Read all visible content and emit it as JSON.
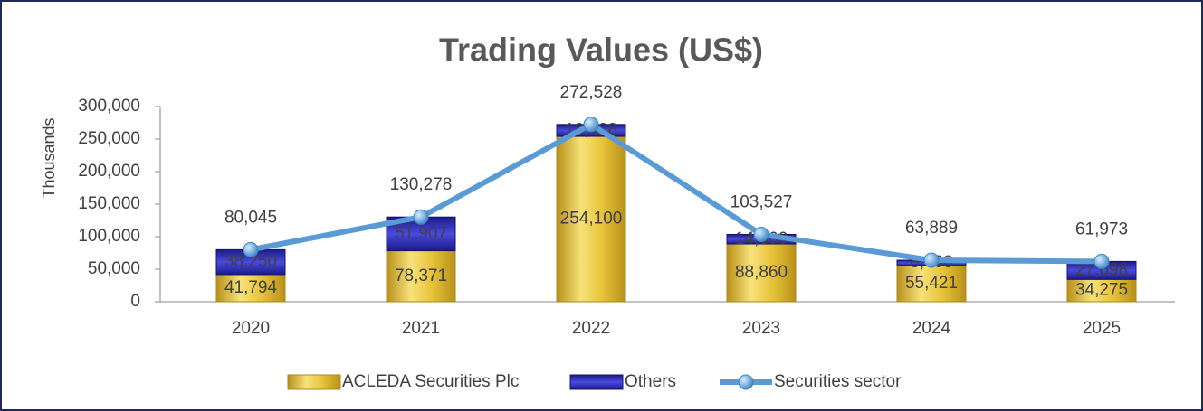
{
  "chart_data": {
    "type": "stacked_bar_line",
    "title": "Trading Values (US$)",
    "y_label": "Thousands",
    "categories": [
      "2020",
      "2021",
      "2022",
      "2023",
      "2024",
      "2025"
    ],
    "series": [
      {
        "name": "ACLEDA Securities Plc",
        "color": "#e8c53a",
        "kind": "bar",
        "values": [
          41794,
          78371,
          254100,
          88860,
          55421,
          34275
        ],
        "value_labels": [
          "41,794",
          "78,371",
          "254,100",
          "88,860",
          "55,421",
          "34,275"
        ]
      },
      {
        "name": "Others",
        "color": "#2b2db8",
        "kind": "bar",
        "values": [
          38250,
          51907,
          18428,
          14666,
          8468,
          27698
        ],
        "value_labels": [
          "38,250",
          "51,907",
          "18,428",
          "14,666",
          "8,468",
          "27,698"
        ]
      },
      {
        "name": "Securities sector",
        "color": "#5b9bd5",
        "kind": "line",
        "values": [
          80045,
          130278,
          272528,
          103527,
          63889,
          61973
        ],
        "value_labels": [
          "80,045",
          "130,278",
          "272,528",
          "103,527",
          "63,889",
          "61,973"
        ]
      }
    ],
    "ylim": [
      0,
      300000
    ],
    "yticks": [
      0,
      {
        "value": 50000,
        "label": "50,000"
      },
      {
        "value": 100000,
        "label": "100,000"
      },
      {
        "value": 150000,
        "label": "150,000"
      },
      {
        "value": 200000,
        "label": "200,000"
      },
      {
        "value": 250000,
        "label": "250,000"
      },
      {
        "value": 300000,
        "label": "300,000"
      }
    ],
    "legend": "bottom"
  }
}
